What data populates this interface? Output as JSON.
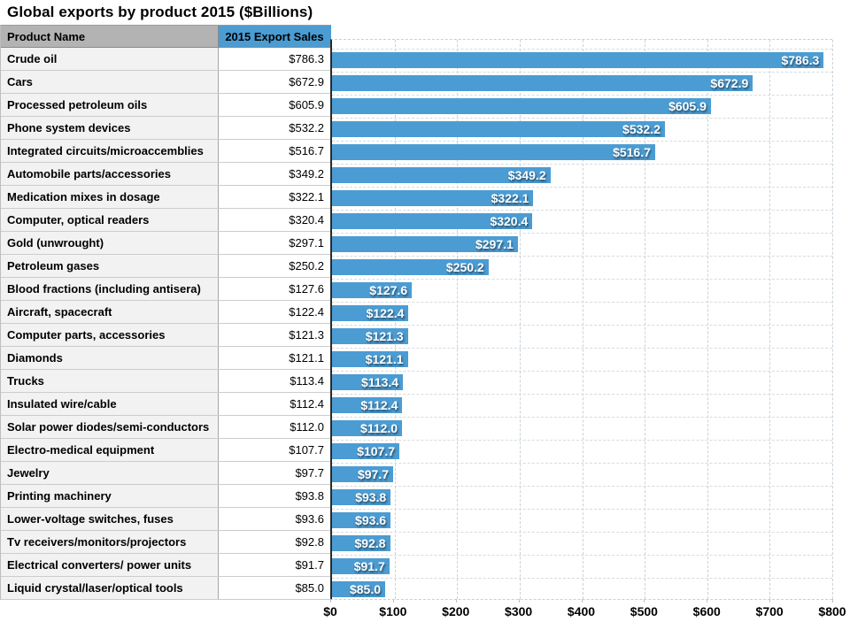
{
  "title": "Global exports by product 2015 ($Billions)",
  "colors": {
    "bar_blue": "#4b9cd3",
    "header_gray": "#b3b3b3",
    "row_gray": "#f2f2f2",
    "gridline": "#c9d3da",
    "bar_label_text": "#ffffff"
  },
  "table": {
    "columns": [
      "Product Name",
      "2015 Export Sales"
    ],
    "rows": [
      {
        "name": "Crude oil",
        "value": "$786.3"
      },
      {
        "name": "Cars",
        "value": "$672.9"
      },
      {
        "name": "Processed petroleum oils",
        "value": "$605.9"
      },
      {
        "name": "Phone system devices",
        "value": "$532.2"
      },
      {
        "name": "Integrated circuits/microaccemblies",
        "value": "$516.7"
      },
      {
        "name": "Automobile parts/accessories",
        "value": "$349.2"
      },
      {
        "name": "Medication mixes in dosage",
        "value": "$322.1"
      },
      {
        "name": "Computer, optical readers",
        "value": "$320.4"
      },
      {
        "name": "Gold (unwrought)",
        "value": "$297.1"
      },
      {
        "name": "Petroleum gases",
        "value": "$250.2"
      },
      {
        "name": "Blood fractions (including antisera)",
        "value": "$127.6"
      },
      {
        "name": "Aircraft, spacecraft",
        "value": "$122.4"
      },
      {
        "name": "Computer parts, accessories",
        "value": "$121.3"
      },
      {
        "name": "Diamonds",
        "value": "$121.1"
      },
      {
        "name": "Trucks",
        "value": "$113.4"
      },
      {
        "name": "Insulated wire/cable",
        "value": "$112.4"
      },
      {
        "name": "Solar power diodes/semi-conductors",
        "value": "$112.0"
      },
      {
        "name": "Electro-medical equipment",
        "value": "$107.7"
      },
      {
        "name": "Jewelry",
        "value": "$97.7"
      },
      {
        "name": "Printing machinery",
        "value": "$93.8"
      },
      {
        "name": "Lower-voltage switches, fuses",
        "value": "$93.6"
      },
      {
        "name": "Tv receivers/monitors/projectors",
        "value": "$92.8"
      },
      {
        "name": "Electrical converters/ power units",
        "value": "$91.7"
      },
      {
        "name": "Liquid crystal/laser/optical tools",
        "value": "$85.0"
      }
    ]
  },
  "chart_data": {
    "type": "bar",
    "orientation": "horizontal",
    "title": "Global exports by product 2015 ($Billions)",
    "xlabel": "",
    "ylabel": "",
    "xlim": [
      0,
      800
    ],
    "grid": true,
    "legend": false,
    "bar_color": "#4b9cd3",
    "categories": [
      "Crude oil",
      "Cars",
      "Processed petroleum oils",
      "Phone system devices",
      "Integrated circuits/microaccemblies",
      "Automobile parts/accessories",
      "Medication mixes in dosage",
      "Computer, optical readers",
      "Gold (unwrought)",
      "Petroleum gases",
      "Blood fractions (including antisera)",
      "Aircraft, spacecraft",
      "Computer parts, accessories",
      "Diamonds",
      "Trucks",
      "Insulated wire/cable",
      "Solar power diodes/semi-conductors",
      "Electro-medical equipment",
      "Jewelry",
      "Printing machinery",
      "Lower-voltage switches, fuses",
      "Tv receivers/monitors/projectors",
      "Electrical converters/ power units",
      "Liquid crystal/laser/optical tools"
    ],
    "values": [
      786.3,
      672.9,
      605.9,
      532.2,
      516.7,
      349.2,
      322.1,
      320.4,
      297.1,
      250.2,
      127.6,
      122.4,
      121.3,
      121.1,
      113.4,
      112.4,
      112.0,
      107.7,
      97.7,
      93.8,
      93.6,
      92.8,
      91.7,
      85.0
    ],
    "bar_labels": [
      "$786.3",
      "$672.9",
      "$605.9",
      "$532.2",
      "$516.7",
      "$349.2",
      "$322.1",
      "$320.4",
      "$297.1",
      "$250.2",
      "$127.6",
      "$122.4",
      "$121.3",
      "$121.1",
      "$113.4",
      "$112.4",
      "$112.0",
      "$107.7",
      "$97.7",
      "$93.8",
      "$93.6",
      "$92.8",
      "$91.7",
      "$85.0"
    ],
    "x_ticks": [
      "$0",
      "$100",
      "$200",
      "$300",
      "$400",
      "$500",
      "$600",
      "$700",
      "$800"
    ]
  }
}
